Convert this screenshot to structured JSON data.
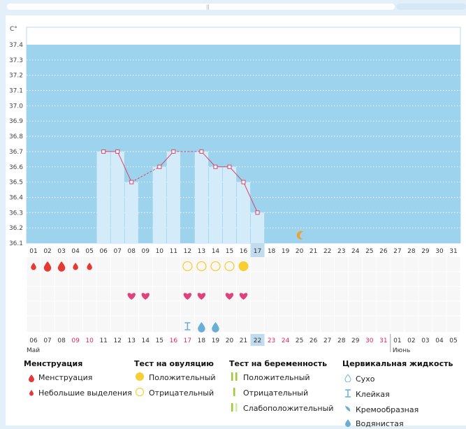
{
  "chart_data": {
    "type": "line",
    "ylabel": "C°",
    "ylim": [
      36.1,
      37.4
    ],
    "yticks": [
      "37.4",
      "37.3",
      "37.2",
      "37.1",
      "37.0",
      "36.9",
      "36.8",
      "36.7",
      "36.6",
      "36.5",
      "36.4",
      "36.3",
      "36.2",
      "36.1"
    ],
    "cycle_days": [
      "01",
      "02",
      "03",
      "04",
      "05",
      "06",
      "07",
      "08",
      "09",
      "10",
      "11",
      "12",
      "13",
      "14",
      "15",
      "16",
      "17",
      "18",
      "19",
      "20",
      "21",
      "22",
      "23",
      "24",
      "25",
      "26",
      "27",
      "28",
      "29",
      "30",
      "31"
    ],
    "current_cycle_day": "17",
    "dates": [
      "06",
      "07",
      "08",
      "09",
      "10",
      "11",
      "12",
      "13",
      "14",
      "15",
      "16",
      "17",
      "18",
      "19",
      "20",
      "21",
      "22",
      "23",
      "24",
      "25",
      "26",
      "27",
      "28",
      "29",
      "30",
      "31",
      "01",
      "02",
      "03",
      "04",
      "05"
    ],
    "current_date": "22",
    "weekend_dates": [
      3,
      4,
      10,
      11,
      17,
      18,
      24,
      25
    ],
    "months": [
      "Май",
      "Июнь"
    ],
    "temperature": [
      null,
      null,
      null,
      null,
      null,
      36.7,
      36.7,
      36.5,
      null,
      36.6,
      36.7,
      null,
      36.7,
      36.6,
      36.6,
      36.5,
      36.3,
      null,
      null,
      null,
      null,
      null,
      null,
      null,
      null,
      null,
      null,
      null,
      null,
      null,
      null
    ],
    "menstruation_days": [
      0,
      1,
      2,
      3,
      4
    ],
    "menstruation_heavy": [
      1,
      2
    ],
    "ovulation_negative_days": [
      11,
      12,
      13,
      14
    ],
    "ovulation_positive_days": [
      15
    ],
    "heart_days": [
      7,
      8,
      11,
      12,
      14,
      15
    ],
    "cervical_sticky_days": [
      11
    ],
    "cervical_watery_days": [
      12,
      13
    ],
    "moon_day": 19,
    "colors": {
      "fill": "#9ed3ee",
      "bar": "#d4ecf9",
      "line": "#d8436a",
      "menstruation": "#e53935",
      "ovulation": "#f7cf35",
      "heart": "#e0437c",
      "cervical": "#6aaed6",
      "moon": "#f0a030",
      "strip": "#f7f7f7",
      "highlight": "#c0dcee"
    }
  },
  "legend": {
    "menstruation": {
      "title": "Менструация",
      "items": [
        "Менструация",
        "Небольшие выделения"
      ]
    },
    "ovulation": {
      "title": "Тест на овуляцию",
      "items": [
        "Положительный",
        "Отрицательный"
      ]
    },
    "pregnancy": {
      "title": "Тест на беременность",
      "items": [
        "Положительный",
        "Отрицательный",
        "Слабоположительный"
      ]
    },
    "cervical": {
      "title": "Цервикальная жидкость",
      "items": [
        "Сухо",
        "Клейкая",
        "Кремообразная",
        "Водянистая"
      ]
    }
  }
}
